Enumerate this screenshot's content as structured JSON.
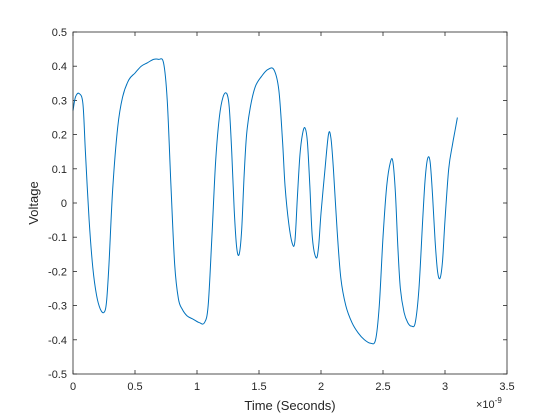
{
  "chart_data": {
    "type": "line",
    "title": "",
    "xlabel": "Time (Seconds)",
    "ylabel": "Voltage",
    "x_exponent_label": "×10",
    "x_exponent_power": "-9",
    "xlim": [
      0,
      3.5
    ],
    "ylim": [
      -0.5,
      0.5
    ],
    "x_ticks": [
      0,
      0.5,
      1,
      1.5,
      2,
      2.5,
      3,
      3.5
    ],
    "x_tick_labels": [
      "0",
      "0.5",
      "1",
      "1.5",
      "2",
      "2.5",
      "3",
      "3.5"
    ],
    "y_ticks": [
      -0.5,
      -0.4,
      -0.3,
      -0.2,
      -0.1,
      0,
      0.1,
      0.2,
      0.3,
      0.4,
      0.5
    ],
    "y_tick_labels": [
      "-0.5",
      "-0.4",
      "-0.3",
      "-0.2",
      "-0.1",
      "0",
      "0.1",
      "0.2",
      "0.3",
      "0.4",
      "0.5"
    ],
    "grid": false,
    "line_color": "#0072BD",
    "series": [
      {
        "x": [
          0,
          0.02,
          0.05,
          0.08,
          0.1,
          0.13,
          0.16,
          0.19,
          0.22,
          0.25,
          0.27,
          0.29,
          0.32,
          0.36,
          0.4,
          0.45,
          0.5,
          0.55,
          0.6,
          0.65,
          0.69,
          0.73,
          0.76,
          0.79,
          0.82,
          0.85,
          0.88,
          0.92,
          0.97,
          1.02,
          1.06,
          1.09,
          1.12,
          1.15,
          1.18,
          1.21,
          1.24,
          1.26,
          1.28,
          1.3,
          1.32,
          1.34,
          1.36,
          1.38,
          1.4,
          1.43,
          1.47,
          1.52,
          1.57,
          1.62,
          1.66,
          1.69,
          1.71,
          1.74,
          1.77,
          1.79,
          1.81,
          1.83,
          1.85,
          1.87,
          1.89,
          1.91,
          1.93,
          1.96,
          1.98,
          2.0,
          2.03,
          2.06,
          2.08,
          2.1,
          2.13,
          2.16,
          2.2,
          2.25,
          2.3,
          2.35,
          2.4,
          2.44,
          2.47,
          2.5,
          2.53,
          2.56,
          2.58,
          2.6,
          2.62,
          2.64,
          2.67,
          2.7,
          2.73,
          2.76,
          2.79,
          2.82,
          2.84,
          2.86,
          2.88,
          2.9,
          2.92,
          2.94,
          2.96,
          2.98,
          3.0,
          3.03,
          3.06,
          3.08,
          3.1
        ],
        "y": [
          0.27,
          0.31,
          0.32,
          0.29,
          0.15,
          -0.05,
          -0.19,
          -0.27,
          -0.31,
          -0.32,
          -0.29,
          -0.18,
          0.04,
          0.22,
          0.31,
          0.36,
          0.38,
          0.4,
          0.41,
          0.42,
          0.42,
          0.41,
          0.3,
          0.05,
          -0.18,
          -0.28,
          -0.31,
          -0.33,
          -0.34,
          -0.35,
          -0.35,
          -0.3,
          -0.1,
          0.12,
          0.25,
          0.31,
          0.32,
          0.28,
          0.15,
          -0.02,
          -0.13,
          -0.15,
          -0.08,
          0.08,
          0.2,
          0.28,
          0.34,
          0.37,
          0.39,
          0.39,
          0.33,
          0.18,
          0.05,
          -0.06,
          -0.12,
          -0.11,
          0.02,
          0.14,
          0.2,
          0.22,
          0.18,
          0.05,
          -0.1,
          -0.16,
          -0.13,
          -0.03,
          0.09,
          0.2,
          0.19,
          0.1,
          -0.08,
          -0.22,
          -0.3,
          -0.35,
          -0.38,
          -0.4,
          -0.41,
          -0.4,
          -0.3,
          -0.1,
          0.05,
          0.12,
          0.12,
          0.03,
          -0.13,
          -0.25,
          -0.32,
          -0.35,
          -0.36,
          -0.35,
          -0.25,
          -0.05,
          0.07,
          0.13,
          0.12,
          0.02,
          -0.11,
          -0.2,
          -0.22,
          -0.17,
          -0.05,
          0.1,
          0.17,
          0.21,
          0.25
        ]
      }
    ]
  }
}
